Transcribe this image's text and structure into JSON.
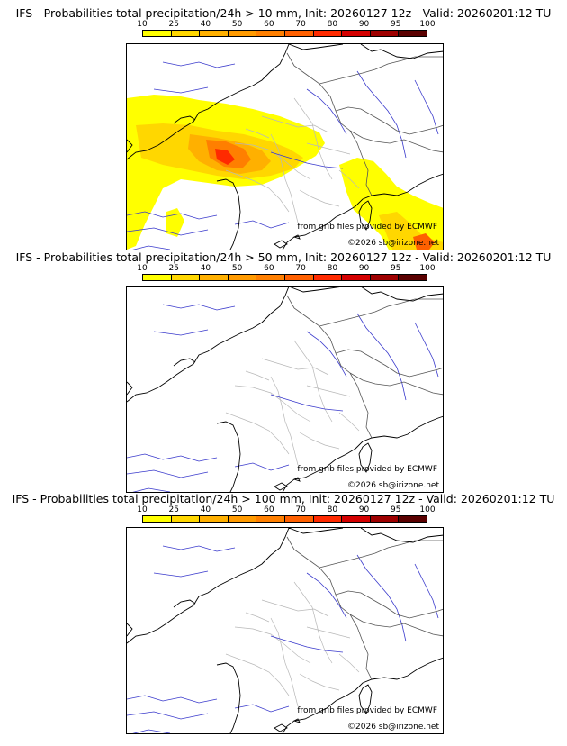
{
  "colorbar": {
    "labels": [
      "10",
      "25",
      "40",
      "50",
      "60",
      "70",
      "80",
      "90",
      "95",
      "100"
    ],
    "colors": [
      "#ffff00",
      "#ffd700",
      "#ffb000",
      "#ff9a00",
      "#ff7f00",
      "#ff6000",
      "#ff2a00",
      "#d40000",
      "#9e0000",
      "#5a0000"
    ]
  },
  "panels": [
    {
      "title": "IFS - Probabilities total precipitation/24h > 10 mm, Init: 20260127 12z - Valid: 20260201:12 TU",
      "credit_source": "from grib files provided by ECMWF",
      "credit_copyright": "©2026 sb@irizone.net",
      "has_precip": true
    },
    {
      "title": "IFS - Probabilities total precipitation/24h > 50 mm, Init: 20260127 12z - Valid: 20260201:12 TU",
      "credit_source": "from grib files provided by ECMWF",
      "credit_copyright": "©2026 sb@irizone.net",
      "has_precip": false
    },
    {
      "title": "IFS - Probabilities total precipitation/24h > 100 mm, Init: 20260127 12z - Valid: 20260201:12 TU",
      "credit_source": "from grib files provided by ECMWF",
      "credit_copyright": "©2026 sb@irizone.net",
      "has_precip": false
    }
  ]
}
